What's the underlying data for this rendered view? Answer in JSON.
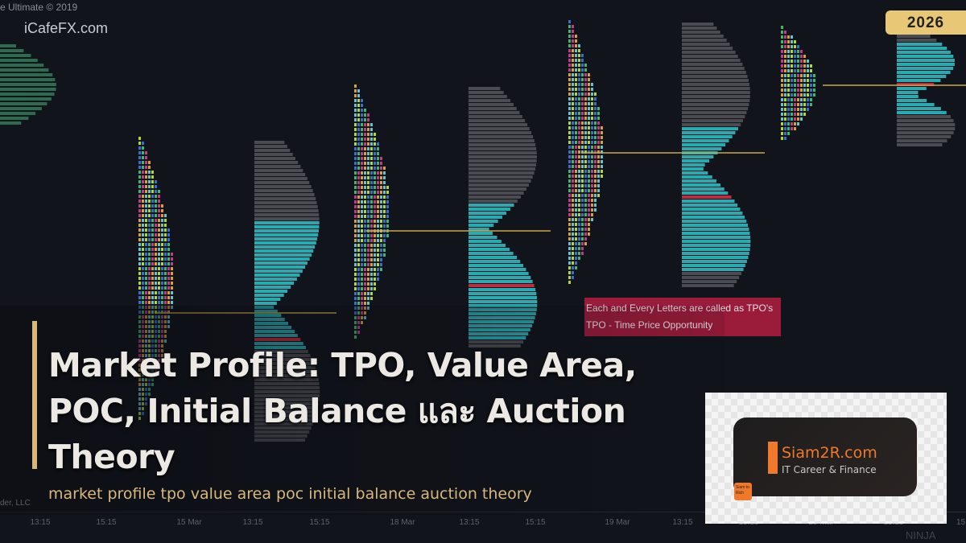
{
  "chart_header": {
    "copyright": "e Ultimate © 2019",
    "site": "iCafeFX.com"
  },
  "year_badge": "2026",
  "annotation": {
    "line1": "Each and Every Letters are called as TPO's",
    "line2": "TPO - Time Price Opportunity"
  },
  "article": {
    "title": "Market Profile: TPO, Value Area, POC, Initial Balance และ Auction Theory",
    "subtitle": "market profile tpo value area poc initial balance auction theory"
  },
  "x_axis_ticks": [
    "13:15",
    "15:15",
    "15 Mar",
    "13:15",
    "15:15",
    "18 Mar",
    "13:15",
    "15:15",
    "19 Mar",
    "13:15",
    "15:15",
    "20 Mar",
    "13:15",
    "15:"
  ],
  "footer": {
    "vendor": "der, LLC",
    "brand": "NINJA"
  },
  "logo": {
    "name": "Siam2R.com",
    "tagline": "IT Career & Finance",
    "badge": "Siam to Rich"
  },
  "colors": {
    "background": "#12141b",
    "value_area": "#2aa9b0",
    "profile_bar": "#4a4c52",
    "poc": "#c8283c",
    "accent": "#d8b87a",
    "logo_orange": "#f0782a"
  }
}
